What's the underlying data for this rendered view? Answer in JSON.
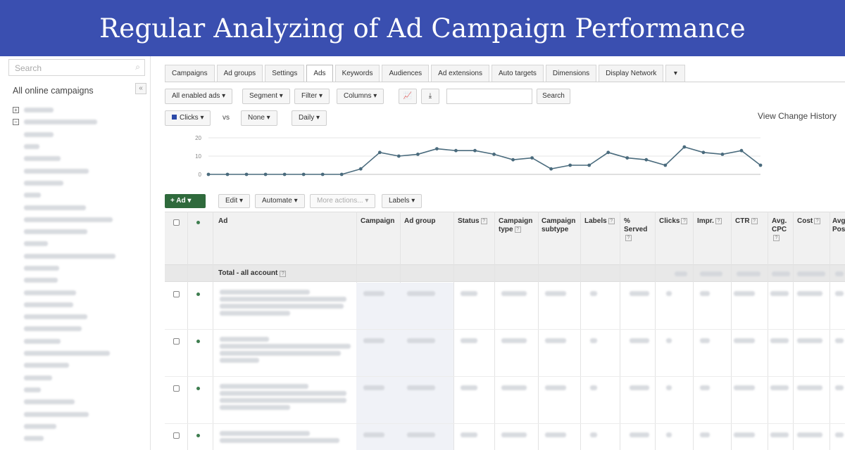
{
  "banner": {
    "title": "Regular Analyzing of Ad Campaign Performance"
  },
  "sidebar": {
    "search_placeholder": "Search",
    "title": "All online campaigns",
    "collapse_label": "«"
  },
  "tabs": [
    "Campaigns",
    "Ad groups",
    "Settings",
    "Ads",
    "Keywords",
    "Audiences",
    "Ad extensions",
    "Auto targets",
    "Dimensions",
    "Display Network",
    "▾"
  ],
  "active_tab": "Ads",
  "toolbar": {
    "filter_all": "All enabled ads ▾",
    "segment": "Segment ▾",
    "filter": "Filter ▾",
    "columns": "Columns ▾",
    "search_button": "Search"
  },
  "chart_controls": {
    "metric1": "Clicks ▾",
    "vs": "vs",
    "metric2": "None ▾",
    "period": "Daily ▾",
    "change_history": "View Change History"
  },
  "chart_data": {
    "type": "line",
    "ylim": [
      0,
      20
    ],
    "yticks": [
      "20",
      "10",
      "0"
    ],
    "values": [
      0,
      0,
      0,
      0,
      0,
      0,
      0,
      0,
      3,
      12,
      10,
      11,
      14,
      13,
      13,
      11,
      8,
      9,
      3,
      5,
      5,
      12,
      9,
      8,
      5,
      15,
      12,
      11,
      13,
      5
    ],
    "series_color": "#4a6b7d"
  },
  "actions": {
    "add": "+ Ad ▾",
    "edit": "Edit ▾",
    "automate": "Automate ▾",
    "more": "More actions... ▾",
    "labels": "Labels ▾"
  },
  "table": {
    "headers": {
      "ad": "Ad",
      "campaign": "Campaign",
      "ad_group": "Ad group",
      "status": "Status",
      "campaign_type": "Campaign type",
      "campaign_subtype": "Campaign subtype",
      "labels": "Labels",
      "served": "% Served",
      "clicks": "Clicks",
      "impr": "Impr.",
      "ctr": "CTR",
      "avg_cpc": "Avg. CPC",
      "cost": "Cost",
      "avg_pos": "Avg. Pos."
    },
    "total_label": "Total - all account"
  }
}
